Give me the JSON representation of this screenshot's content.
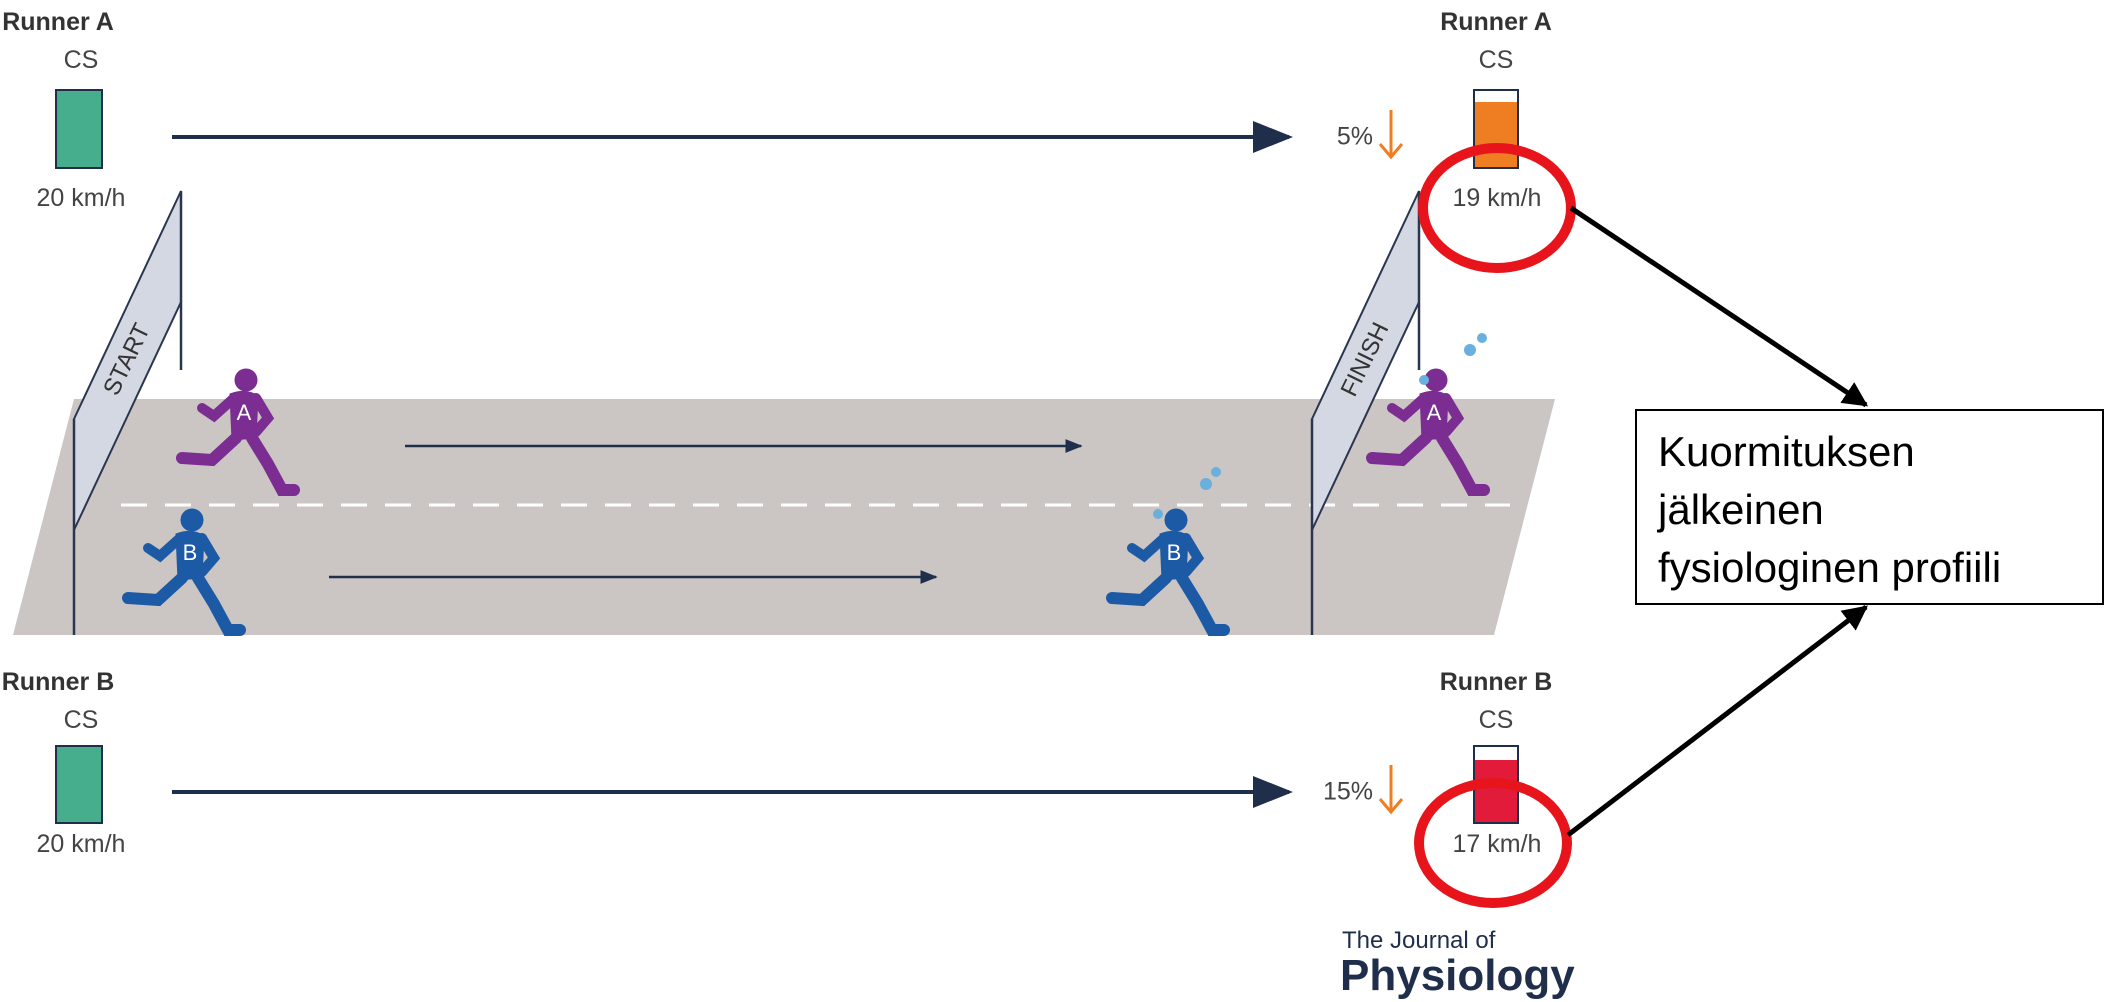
{
  "runner_a": {
    "start": {
      "name": "Runner A",
      "metric": "CS",
      "speed": "20 km/h"
    },
    "finish": {
      "name": "Runner A",
      "metric": "CS",
      "speed": "19 km/h",
      "drop": "5%"
    }
  },
  "runner_b": {
    "start": {
      "name": "Runner B",
      "metric": "CS",
      "speed": "20 km/h"
    },
    "finish": {
      "name": "Runner B",
      "metric": "CS",
      "speed": "17 km/h",
      "drop": "15%"
    }
  },
  "gates": {
    "start": "START",
    "finish": "FINISH"
  },
  "runner_letters": {
    "a": "A",
    "b": "B"
  },
  "callout": [
    "Kuormituksen",
    "jälkeinen",
    "fysiologinen profiili"
  ],
  "logo": {
    "line1": "The Journal of",
    "line2": "Physiology"
  }
}
